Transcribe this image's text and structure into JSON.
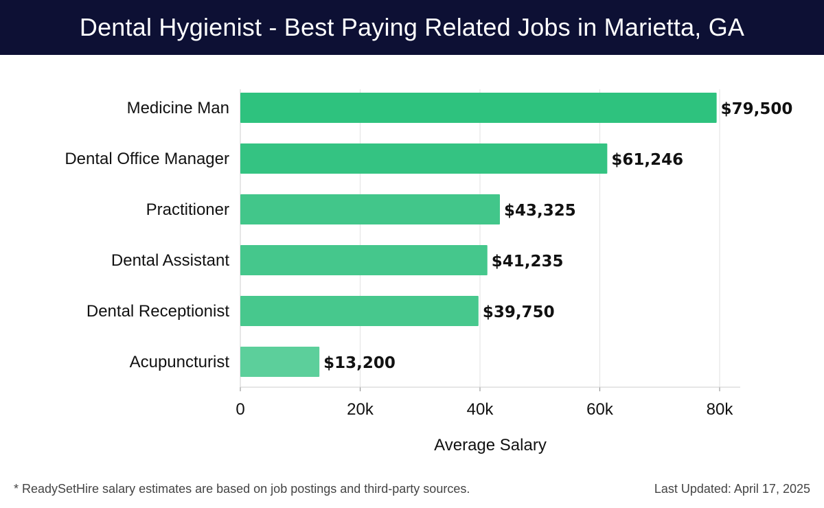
{
  "header": {
    "title": "Dental Hygienist - Best Paying Related Jobs in Marietta, GA"
  },
  "footer": {
    "note": "* ReadySetHire salary estimates are based on job postings and third-party sources.",
    "updated": "Last Updated: April 17, 2025"
  },
  "colors": {
    "header_bg": "#0d1034",
    "bar_colors": [
      "#2ec27e",
      "#34c382",
      "#42c68a",
      "#45c78c",
      "#47c88d",
      "#5ccf9b"
    ],
    "grid": "#e2e2e2",
    "axis": "#cccccc"
  },
  "chart_data": {
    "type": "bar",
    "orientation": "horizontal",
    "title": "",
    "xlabel": "Average Salary",
    "ylabel": "",
    "categories": [
      "Medicine Man",
      "Dental Office Manager",
      "Practitioner",
      "Dental Assistant",
      "Dental Receptionist",
      "Acupuncturist"
    ],
    "values": [
      79500,
      61246,
      43325,
      41235,
      39750,
      13200
    ],
    "value_labels": [
      "$79,500",
      "$61,246",
      "$43,325",
      "$41,235",
      "$39,750",
      "$13,200"
    ],
    "xlim": [
      0,
      83500
    ],
    "xticks": [
      0,
      20000,
      40000,
      60000,
      80000
    ],
    "xtick_labels": [
      "0",
      "20k",
      "40k",
      "60k",
      "80k"
    ],
    "grid": true,
    "legend": "none"
  }
}
